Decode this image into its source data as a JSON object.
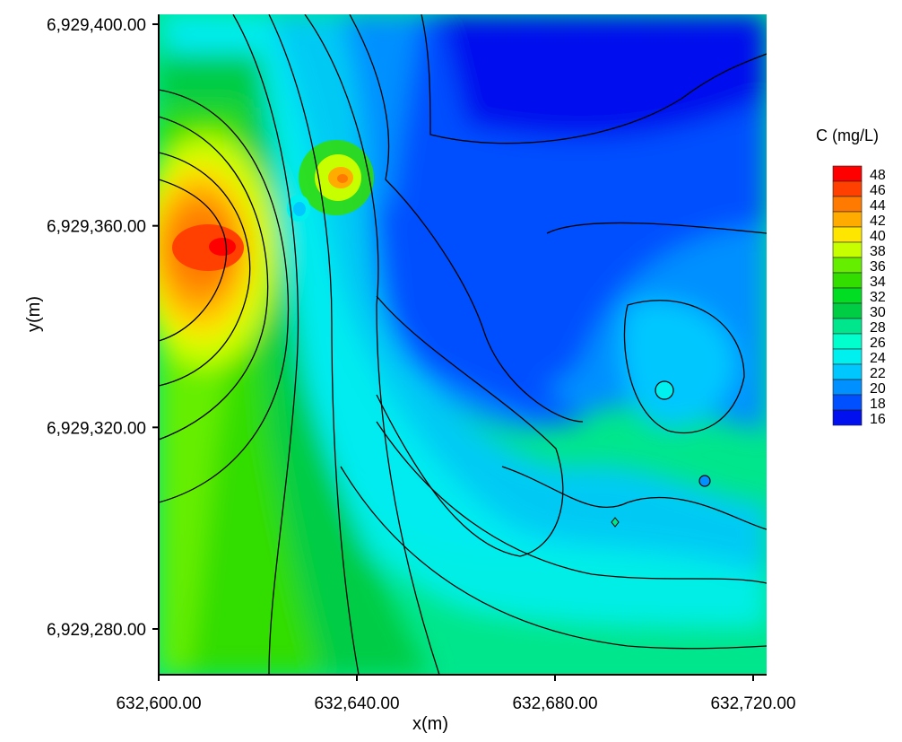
{
  "chart_data": {
    "type": "heatmap",
    "xlabel": "x(m)",
    "ylabel": "y(m)",
    "xlim": [
      632600,
      632720
    ],
    "ylim": [
      6929270,
      6929400
    ],
    "x_ticks": [
      {
        "value": 632600,
        "label": "632,600.00"
      },
      {
        "value": 632640,
        "label": "632,640.00"
      },
      {
        "value": 632680,
        "label": "632,680.00"
      },
      {
        "value": 632720,
        "label": "632,720.00"
      }
    ],
    "y_ticks": [
      {
        "value": 6929400,
        "label": "6,929,400.00"
      },
      {
        "value": 6929360,
        "label": "6,929,360.00"
      },
      {
        "value": 6929320,
        "label": "6,929,320.00"
      },
      {
        "value": 6929280,
        "label": "6,929,280.00"
      }
    ],
    "colorbar": {
      "title": "C (mg/L)",
      "levels": [
        48,
        46,
        44,
        42,
        40,
        38,
        36,
        34,
        32,
        30,
        28,
        26,
        24,
        22,
        20,
        18,
        16
      ],
      "colors": [
        "#ff0000",
        "#ff4000",
        "#ff7a00",
        "#ffab00",
        "#ffe600",
        "#c8ff00",
        "#66ee00",
        "#33dd00",
        "#00dd22",
        "#00cc44",
        "#00e68c",
        "#00ffcc",
        "#00f0f0",
        "#00c8ff",
        "#0090ff",
        "#0050ff",
        "#0010ee"
      ]
    },
    "features": [
      {
        "kind": "peak",
        "x": 632612,
        "y": 6929355,
        "c": 48
      },
      {
        "kind": "peak",
        "x": 632637,
        "y": 6929370,
        "c": 44
      },
      {
        "kind": "local-min",
        "x": 632629,
        "y": 6929364,
        "c": 22
      },
      {
        "kind": "low-zone",
        "x": 632678,
        "y": 6929378,
        "c": 16
      }
    ]
  }
}
